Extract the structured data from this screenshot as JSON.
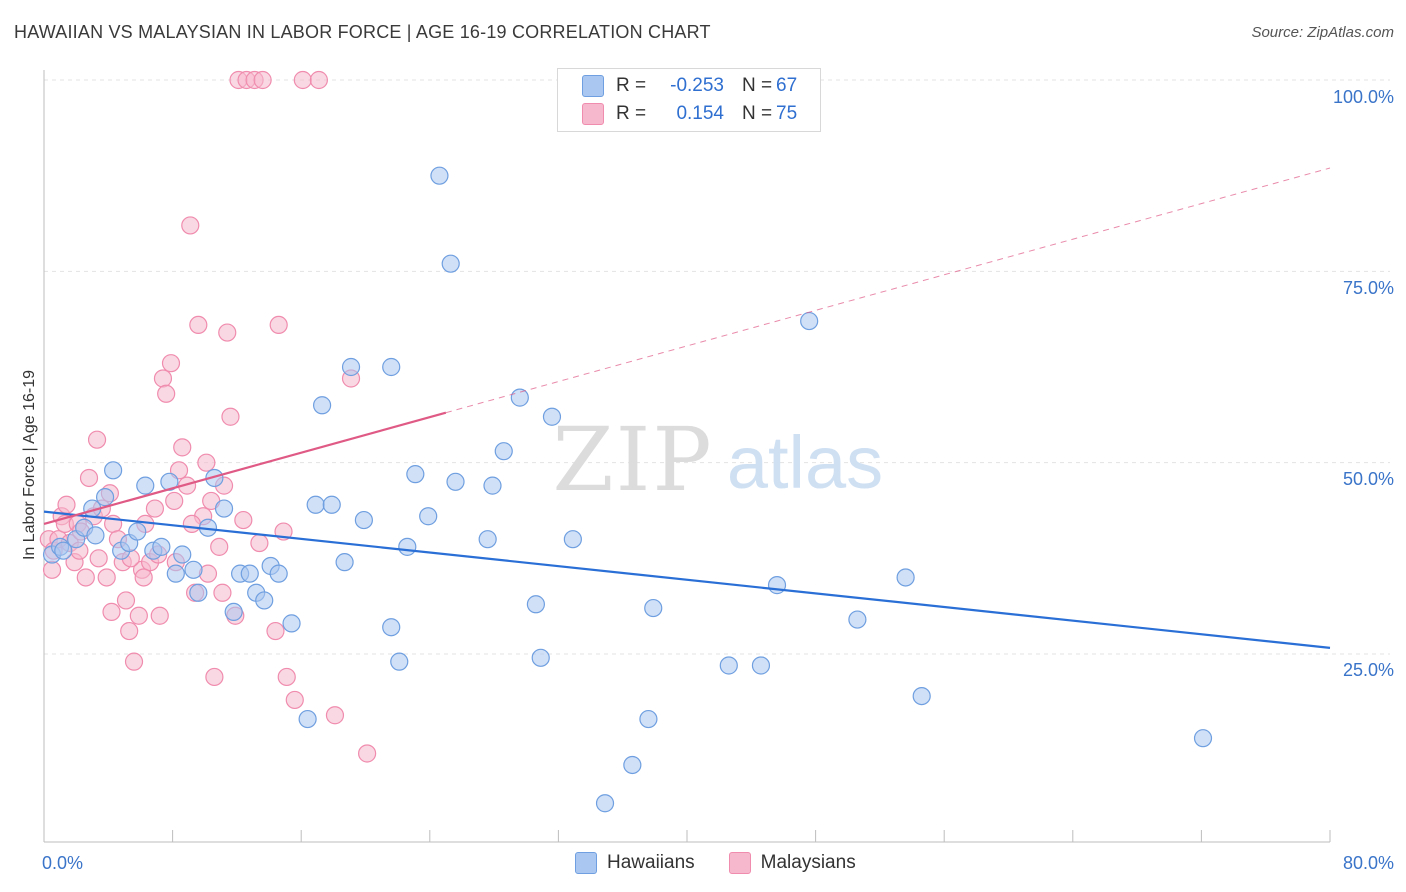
{
  "title": "HAWAIIAN VS MALAYSIAN IN LABOR FORCE | AGE 16-19 CORRELATION CHART",
  "source": "Source: ZipAtlas.com",
  "watermark": {
    "zip": "ZIP",
    "atlas": "atlas"
  },
  "legend": {
    "rows": [
      {
        "series": "Hawaiians",
        "r_label": "R =",
        "r_value": "-0.253",
        "n_label": "N =",
        "n_value": "67",
        "color": "#a9c7f0"
      },
      {
        "series": "Malaysians",
        "r_label": "R =",
        "r_value": "0.154",
        "n_label": "N =",
        "n_value": "75",
        "color": "#f6b8cc"
      }
    ]
  },
  "bottom_legend": [
    "Hawaiians",
    "Malaysians"
  ],
  "chart_data": {
    "type": "scatter",
    "title": "HAWAIIAN VS MALAYSIAN IN LABOR FORCE | AGE 16-19 CORRELATION CHART",
    "xlabel": "",
    "ylabel": "In Labor Force | Age 16-19",
    "xlim": [
      0,
      80
    ],
    "ylim": [
      0,
      105
    ],
    "x_tick_labels": [
      "0.0%",
      "80.0%"
    ],
    "y_ticks": [
      25,
      50,
      75,
      100
    ],
    "y_tick_labels": [
      "25.0%",
      "50.0%",
      "75.0%",
      "100.0%"
    ],
    "grid": true,
    "legend_position": "top-center",
    "series": [
      {
        "name": "Hawaiians",
        "color": "#6f9fe0",
        "fill": "#a9c7f0",
        "line_color": "#2a6fd6",
        "trend": {
          "x": [
            0,
            80
          ],
          "y": [
            43.6,
            25.8
          ],
          "dashed_from": null
        },
        "points": [
          [
            0.5,
            38
          ],
          [
            1,
            39
          ],
          [
            1.2,
            38.5
          ],
          [
            2,
            40
          ],
          [
            2.5,
            41.5
          ],
          [
            3,
            44
          ],
          [
            3.2,
            40.5
          ],
          [
            3.8,
            45.5
          ],
          [
            4.3,
            49
          ],
          [
            4.8,
            38.5
          ],
          [
            5.3,
            39.5
          ],
          [
            5.8,
            41
          ],
          [
            6.3,
            47
          ],
          [
            6.8,
            38.5
          ],
          [
            7.3,
            39
          ],
          [
            7.8,
            47.5
          ],
          [
            8.2,
            35.5
          ],
          [
            8.6,
            38
          ],
          [
            9.3,
            36
          ],
          [
            9.6,
            33
          ],
          [
            10.2,
            41.5
          ],
          [
            10.6,
            48
          ],
          [
            11.2,
            44
          ],
          [
            11.8,
            30.5
          ],
          [
            12.2,
            35.5
          ],
          [
            12.8,
            35.5
          ],
          [
            13.2,
            33
          ],
          [
            13.7,
            32
          ],
          [
            14.1,
            36.5
          ],
          [
            14.6,
            35.5
          ],
          [
            15.4,
            29
          ],
          [
            16.4,
            16.5
          ],
          [
            16.9,
            44.5
          ],
          [
            17.3,
            57.5
          ],
          [
            17.9,
            44.5
          ],
          [
            18.7,
            37
          ],
          [
            19.1,
            62.5
          ],
          [
            19.9,
            42.5
          ],
          [
            21.6,
            62.5
          ],
          [
            21.6,
            28.5
          ],
          [
            22.1,
            24
          ],
          [
            22.6,
            39
          ],
          [
            23.1,
            48.5
          ],
          [
            23.9,
            43
          ],
          [
            24.6,
            87.5
          ],
          [
            25.3,
            76
          ],
          [
            25.6,
            47.5
          ],
          [
            27.6,
            40
          ],
          [
            27.9,
            47
          ],
          [
            28.6,
            51.5
          ],
          [
            29.6,
            58.5
          ],
          [
            30.6,
            31.5
          ],
          [
            30.9,
            24.5
          ],
          [
            31.6,
            56
          ],
          [
            32.9,
            40
          ],
          [
            34.9,
            5.5
          ],
          [
            36.6,
            10.5
          ],
          [
            37.6,
            16.5
          ],
          [
            37.9,
            31
          ],
          [
            42.6,
            23.5
          ],
          [
            44.6,
            23.5
          ],
          [
            45.6,
            34
          ],
          [
            47.6,
            68.5
          ],
          [
            50.6,
            29.5
          ],
          [
            53.6,
            35
          ],
          [
            54.6,
            19.5
          ],
          [
            72.1,
            14
          ]
        ]
      },
      {
        "name": "Malaysians",
        "color": "#f08cae",
        "fill": "#f6b8cc",
        "line_color": "#e05a86",
        "trend": {
          "x": [
            0,
            80
          ],
          "y": [
            42.0,
            88.5
          ],
          "dashed_from": 25
        },
        "points": [
          [
            0.3,
            40
          ],
          [
            0.6,
            38.5
          ],
          [
            0.9,
            40
          ],
          [
            1.1,
            43
          ],
          [
            1.3,
            42
          ],
          [
            1.6,
            39.5
          ],
          [
            1.9,
            37
          ],
          [
            2.1,
            42
          ],
          [
            2.3,
            41
          ],
          [
            2.6,
            35
          ],
          [
            2.8,
            48
          ],
          [
            3.1,
            43
          ],
          [
            3.3,
            53
          ],
          [
            3.6,
            44
          ],
          [
            3.9,
            35
          ],
          [
            4.1,
            46
          ],
          [
            4.3,
            42
          ],
          [
            4.6,
            40
          ],
          [
            4.9,
            37
          ],
          [
            5.1,
            32
          ],
          [
            5.3,
            28
          ],
          [
            5.6,
            24
          ],
          [
            5.9,
            30
          ],
          [
            6.1,
            36
          ],
          [
            6.3,
            42
          ],
          [
            6.6,
            37
          ],
          [
            6.9,
            44
          ],
          [
            7.1,
            38
          ],
          [
            7.4,
            61
          ],
          [
            7.6,
            59
          ],
          [
            7.9,
            63
          ],
          [
            8.1,
            45
          ],
          [
            8.4,
            49
          ],
          [
            8.6,
            52
          ],
          [
            8.9,
            47
          ],
          [
            9.1,
            81
          ],
          [
            9.4,
            33
          ],
          [
            9.6,
            68
          ],
          [
            9.9,
            43
          ],
          [
            10.1,
            50
          ],
          [
            10.4,
            45
          ],
          [
            10.6,
            22
          ],
          [
            10.9,
            39
          ],
          [
            11.1,
            33
          ],
          [
            11.4,
            67
          ],
          [
            11.6,
            56
          ],
          [
            11.9,
            30
          ],
          [
            12.1,
            100
          ],
          [
            12.6,
            100
          ],
          [
            13.1,
            100
          ],
          [
            13.6,
            100
          ],
          [
            14.6,
            68
          ],
          [
            14.9,
            41
          ],
          [
            15.1,
            22
          ],
          [
            15.6,
            19
          ],
          [
            16.1,
            100
          ],
          [
            17.1,
            100
          ],
          [
            18.1,
            17
          ],
          [
            19.1,
            61
          ],
          [
            20.1,
            12
          ],
          [
            0.5,
            36
          ],
          [
            1.4,
            44.5
          ],
          [
            2.2,
            38.5
          ],
          [
            3.4,
            37.5
          ],
          [
            4.2,
            30.5
          ],
          [
            5.4,
            37.5
          ],
          [
            6.2,
            35
          ],
          [
            7.2,
            30
          ],
          [
            8.2,
            37
          ],
          [
            9.2,
            42
          ],
          [
            10.2,
            35.5
          ],
          [
            11.2,
            47
          ],
          [
            12.4,
            42.5
          ],
          [
            13.4,
            39.5
          ],
          [
            14.4,
            28
          ]
        ]
      }
    ]
  }
}
